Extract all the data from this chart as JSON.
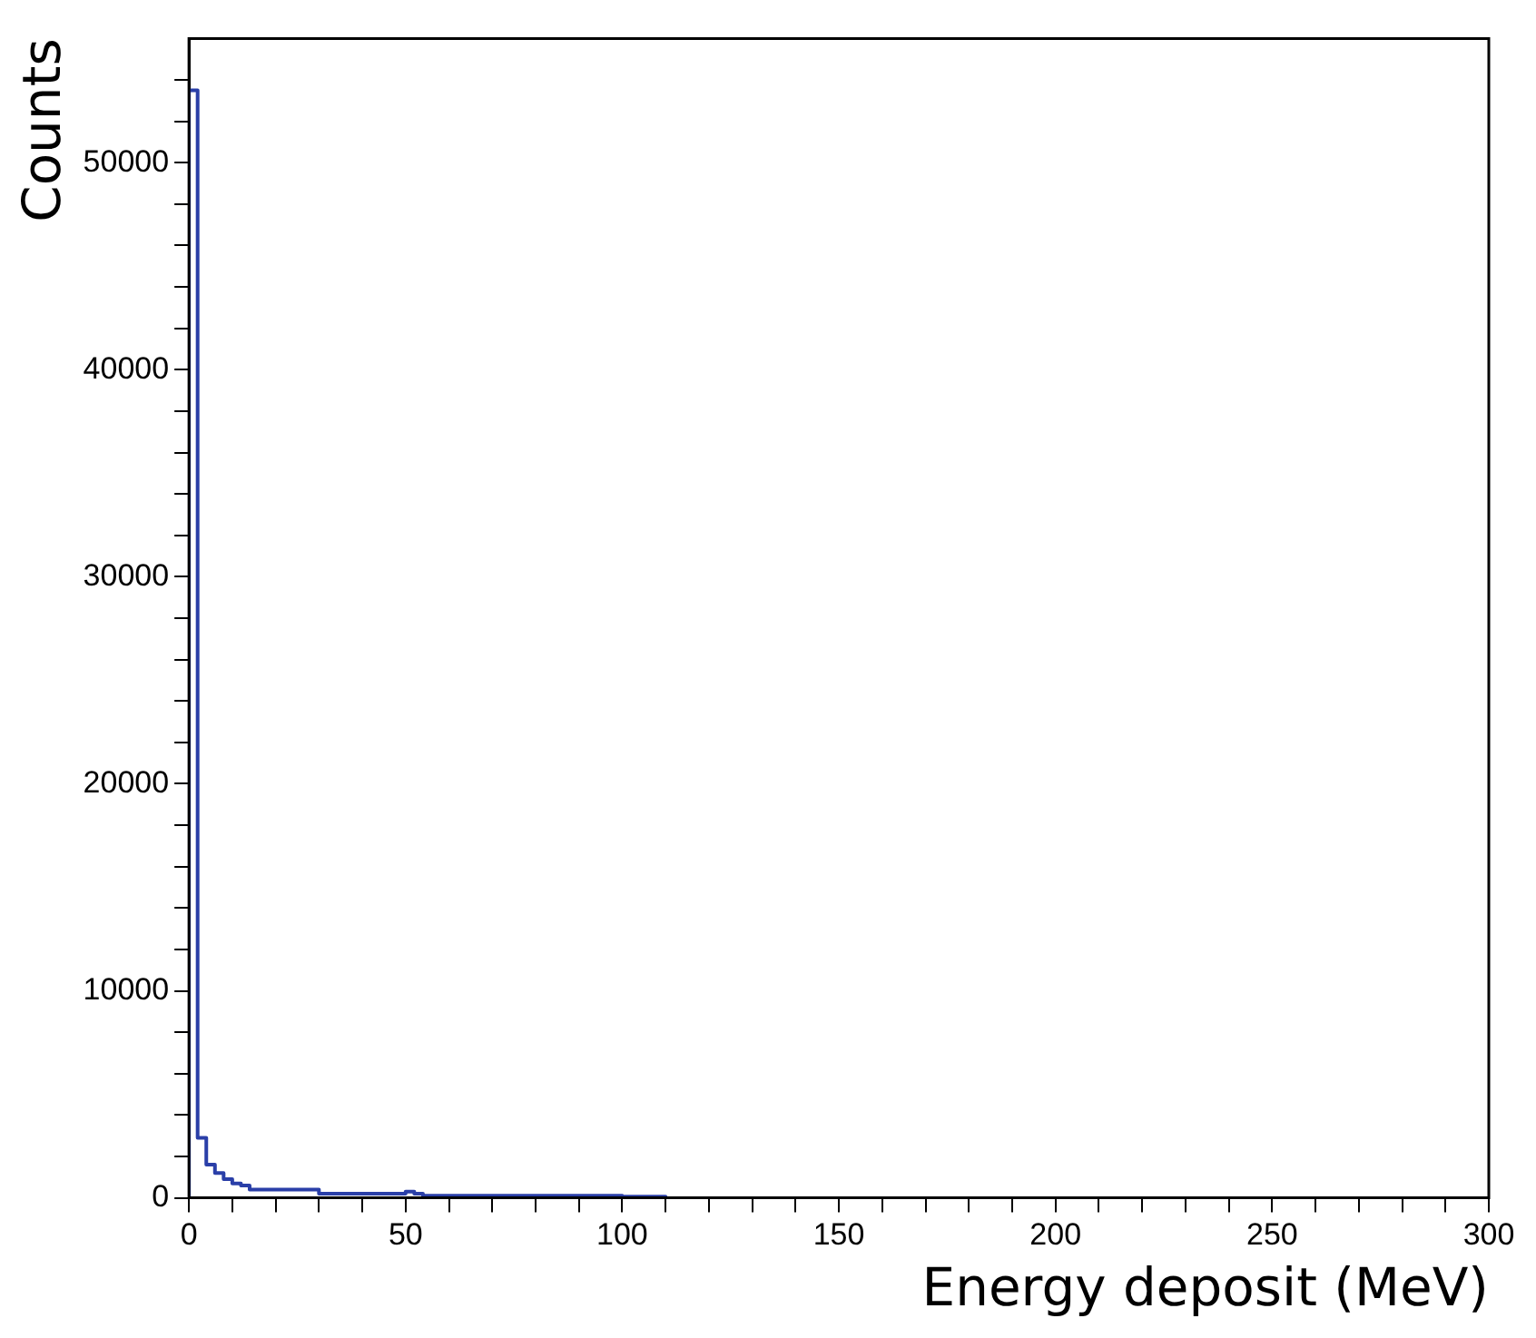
{
  "chart_data": {
    "type": "histogram",
    "xlabel": "Energy deposit (MeV)",
    "ylabel": "Counts",
    "bins": [
      0,
      2,
      4,
      6,
      8,
      10,
      12,
      14,
      16,
      18,
      20,
      22,
      24,
      26,
      28,
      30,
      32,
      34,
      36,
      38,
      40,
      42,
      44,
      46,
      48,
      50,
      52,
      54,
      56,
      58,
      60,
      62,
      64,
      66,
      68,
      70,
      72,
      74,
      76,
      78,
      80,
      82,
      84,
      86,
      88,
      90,
      92,
      94,
      96,
      98,
      100,
      102,
      104,
      106,
      108,
      110
    ],
    "values": [
      53500,
      2900,
      1600,
      1200,
      900,
      700,
      600,
      400,
      400,
      400,
      400,
      400,
      400,
      400,
      400,
      200,
      200,
      200,
      200,
      200,
      200,
      200,
      200,
      200,
      200,
      300,
      200,
      100,
      100,
      100,
      100,
      100,
      100,
      100,
      100,
      100,
      100,
      100,
      100,
      100,
      100,
      100,
      100,
      100,
      100,
      100,
      100,
      100,
      100,
      100,
      60,
      60,
      60,
      60,
      60
    ],
    "color": "#2a3fa8",
    "xlim": [
      0,
      300
    ],
    "xticks": [
      0,
      {
        "value": 10,
        "label": null
      },
      {
        "value": 20,
        "label": null
      },
      {
        "value": 30,
        "label": null
      },
      {
        "value": 40,
        "label": null
      },
      50,
      {
        "value": 60,
        "label": null
      },
      {
        "value": 70,
        "label": null
      },
      {
        "value": 80,
        "label": null
      },
      {
        "value": 90,
        "label": null
      },
      100,
      {
        "value": 110,
        "label": null
      },
      {
        "value": 120,
        "label": null
      },
      {
        "value": 130,
        "label": null
      },
      {
        "value": 140,
        "label": null
      },
      150,
      {
        "value": 160,
        "label": null
      },
      {
        "value": 170,
        "label": null
      },
      {
        "value": 180,
        "label": null
      },
      {
        "value": 190,
        "label": null
      },
      200,
      {
        "value": 210,
        "label": null
      },
      {
        "value": 220,
        "label": null
      },
      {
        "value": 230,
        "label": null
      },
      {
        "value": 240,
        "label": null
      },
      250,
      {
        "value": 260,
        "label": null
      },
      {
        "value": 270,
        "label": null
      },
      {
        "value": 280,
        "label": null
      },
      {
        "value": 290,
        "label": null
      },
      300
    ],
    "ylim": [
      0,
      56000
    ],
    "yticks": [
      0,
      {
        "value": 2000,
        "label": null
      },
      {
        "value": 4000,
        "label": null
      },
      {
        "value": 6000,
        "label": null
      },
      {
        "value": 8000,
        "label": null
      },
      10000,
      {
        "value": 12000,
        "label": null
      },
      {
        "value": 14000,
        "label": null
      },
      {
        "value": 16000,
        "label": null
      },
      {
        "value": 18000,
        "label": null
      },
      20000,
      {
        "value": 22000,
        "label": null
      },
      {
        "value": 24000,
        "label": null
      },
      {
        "value": 26000,
        "label": null
      },
      {
        "value": 28000,
        "label": null
      },
      30000,
      {
        "value": 32000,
        "label": null
      },
      {
        "value": 34000,
        "label": null
      },
      {
        "value": 36000,
        "label": null
      },
      {
        "value": 38000,
        "label": null
      },
      40000,
      {
        "value": 42000,
        "label": null
      },
      {
        "value": 44000,
        "label": null
      },
      {
        "value": 46000,
        "label": null
      },
      {
        "value": 48000,
        "label": null
      },
      50000,
      {
        "value": 52000,
        "label": null
      },
      {
        "value": 54000,
        "label": null
      }
    ],
    "grid": false,
    "legend": false
  }
}
